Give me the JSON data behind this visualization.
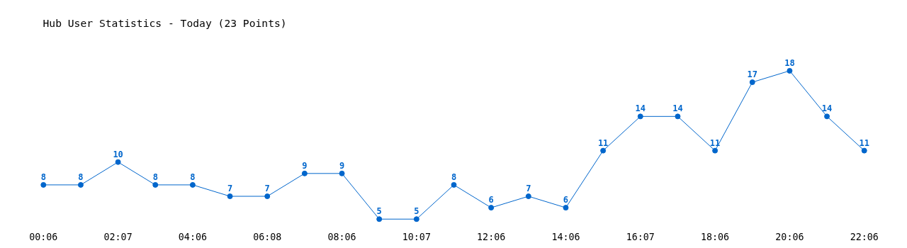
{
  "chart_data": {
    "type": "line",
    "title": "Hub User Statistics - Today (23 Points)",
    "categories": [
      "00:06",
      null,
      "02:07",
      null,
      "04:06",
      null,
      "06:08",
      null,
      "08:06",
      null,
      "10:07",
      null,
      "12:06",
      null,
      "14:06",
      null,
      "16:07",
      null,
      "18:06",
      null,
      "20:06",
      null,
      "22:06"
    ],
    "series": [
      {
        "color": "#0066cc",
        "values": [
          8,
          8,
          10,
          8,
          8,
          7,
          7,
          9,
          9,
          5,
          5,
          8,
          6,
          7,
          6,
          11,
          14,
          14,
          11,
          17,
          18,
          14,
          11
        ]
      }
    ],
    "data_labels": true,
    "marker": "circle",
    "grid": false,
    "line_style": "solid",
    "tick_labels": "x"
  }
}
